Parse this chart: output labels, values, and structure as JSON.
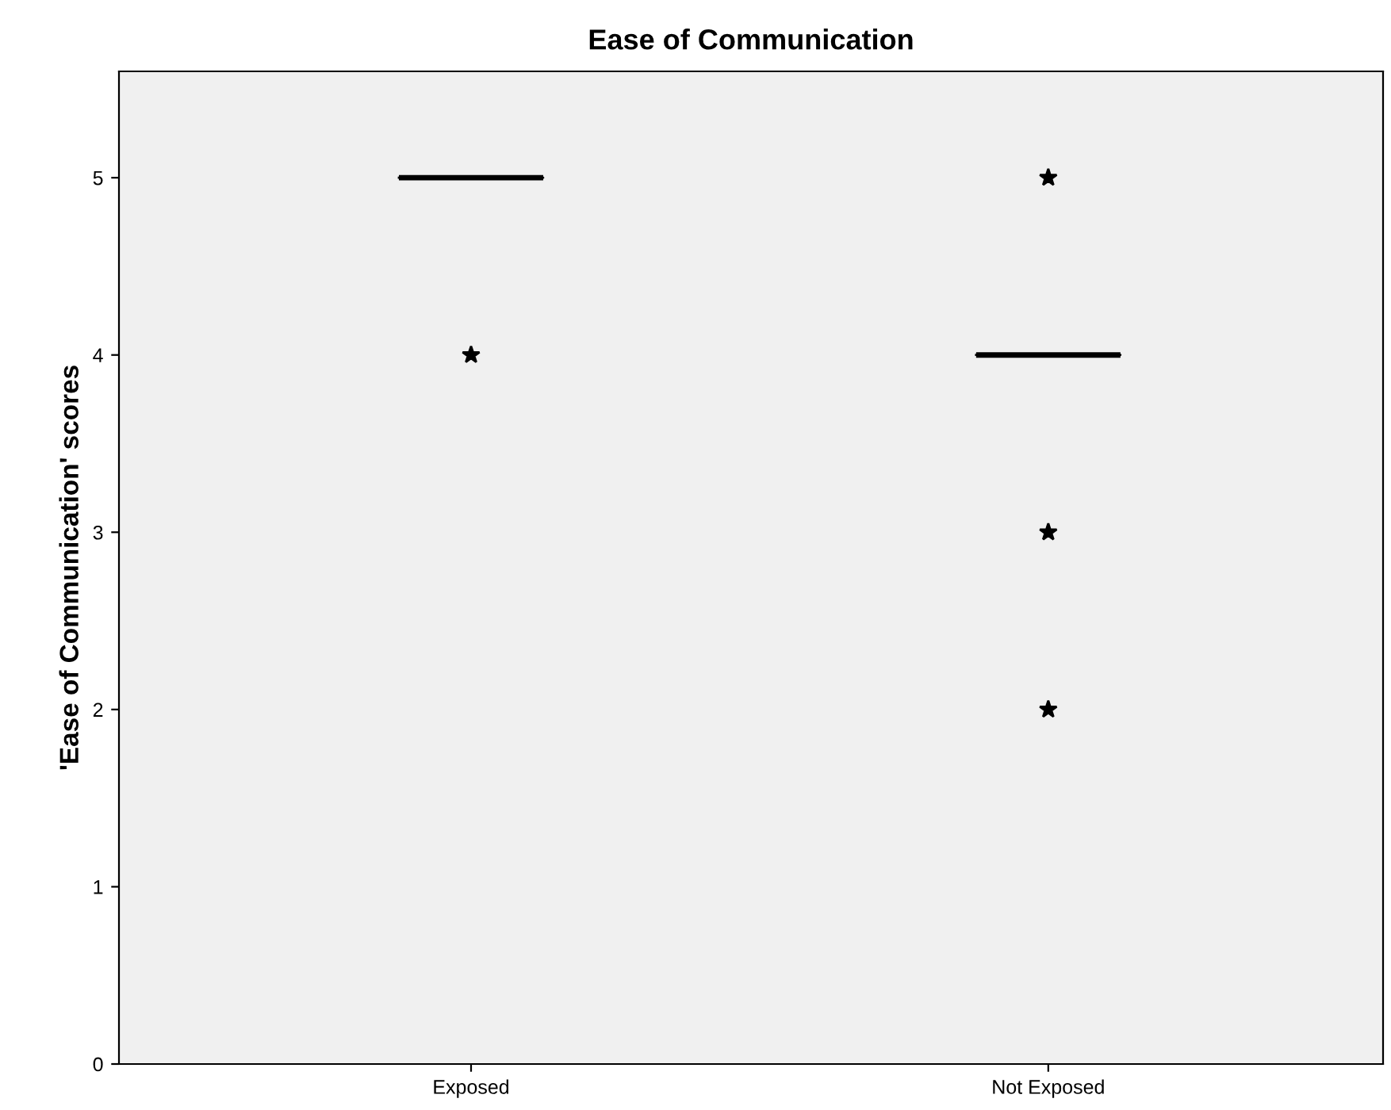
{
  "chart_data": {
    "type": "box",
    "title": "Ease of Communication",
    "ylabel": "'Ease of Communication' scores",
    "categories": [
      "Exposed",
      "Not Exposed"
    ],
    "boxes": [
      {
        "low": 5,
        "q1": 5,
        "median": 5,
        "q3": 5,
        "high": 5,
        "outliers": [
          4
        ]
      },
      {
        "low": 4,
        "q1": 4,
        "median": 4,
        "q3": 4,
        "high": 4,
        "outliers": [
          5,
          3,
          2
        ]
      }
    ],
    "marker": "star",
    "ylim": [
      0,
      5.6
    ],
    "yticks": [
      0,
      1,
      2,
      3,
      4,
      5
    ],
    "grid": false,
    "legend": false
  }
}
